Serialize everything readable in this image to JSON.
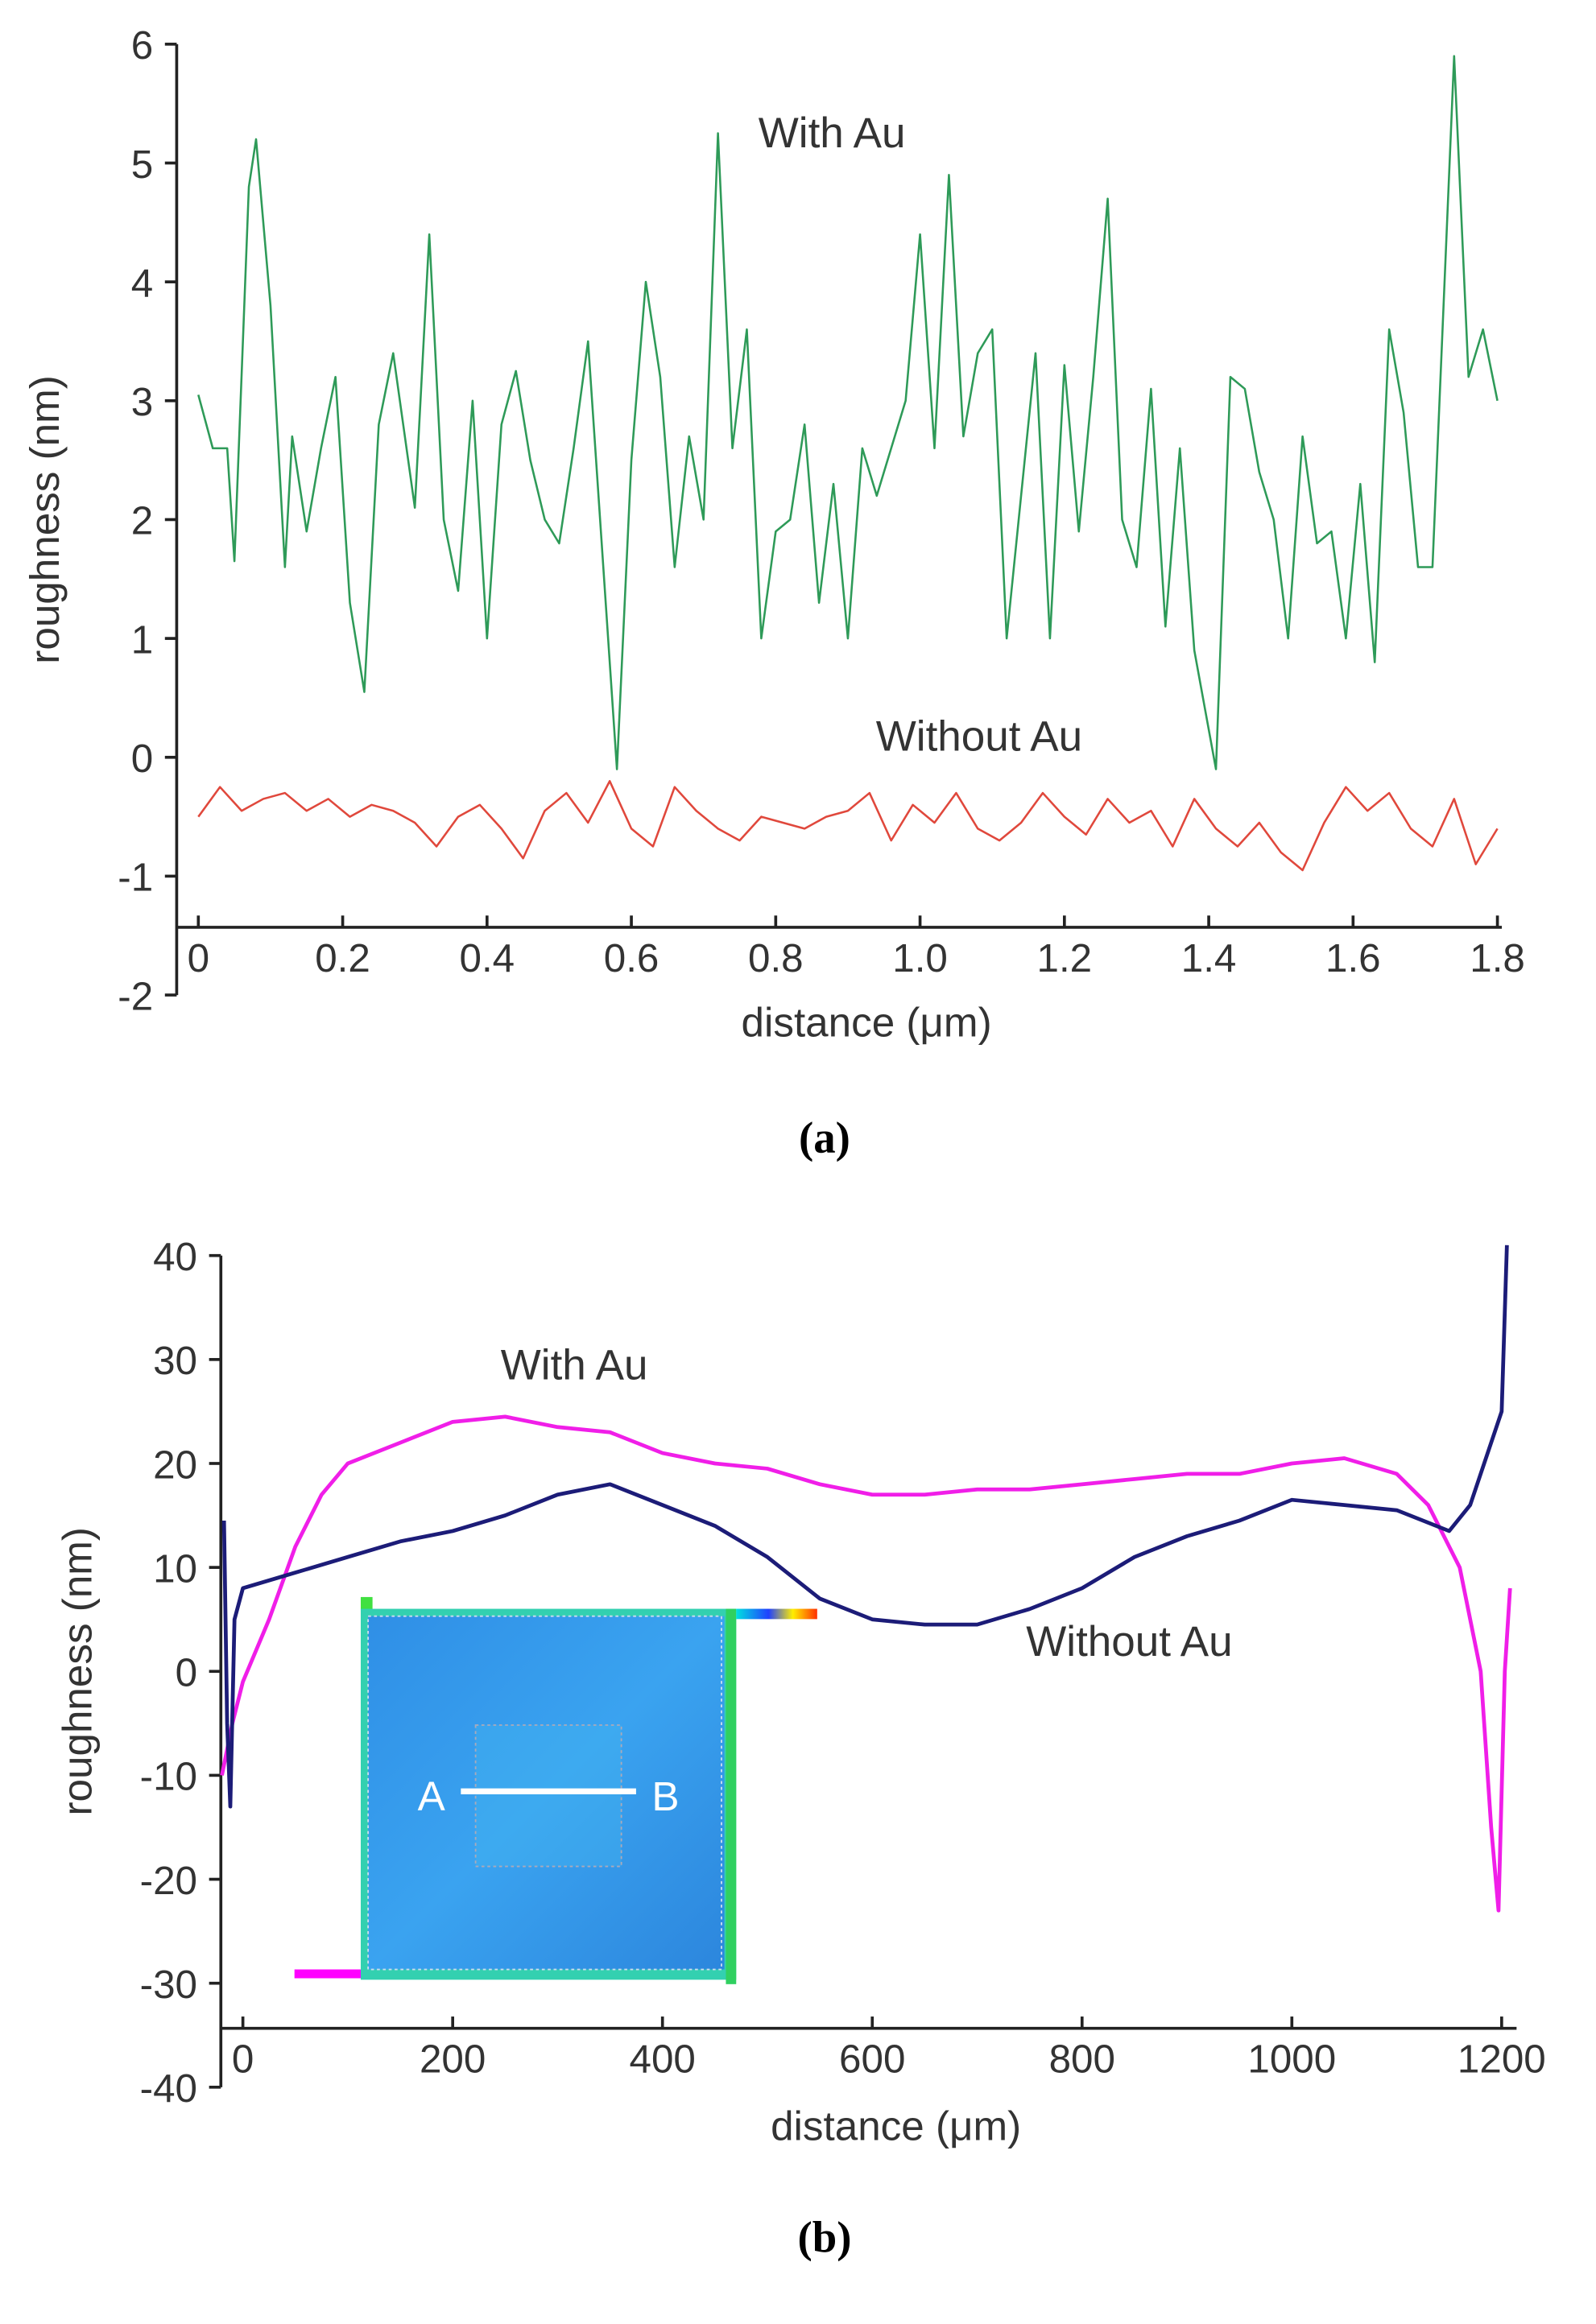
{
  "chart_data": [
    {
      "type": "line",
      "caption": "(a)",
      "xlabel": "distance (μm)",
      "ylabel": "roughness (nm)",
      "xlim": [
        -0.03,
        1.8
      ],
      "ylim": [
        -2,
        6
      ],
      "xticks": [
        0,
        0.2,
        0.4,
        0.6,
        0.8,
        {
          "value": 1,
          "label": "1.0"
        },
        1.2,
        1.4,
        1.6,
        1.8
      ],
      "yticks": [
        -2,
        -1,
        0,
        1,
        2,
        3,
        4,
        5,
        6
      ],
      "series": [
        {
          "name": "With Au",
          "color": "#2e9a58",
          "x": [
            0,
            0.02,
            0.04,
            0.05,
            0.07,
            0.08,
            0.1,
            0.12,
            0.13,
            0.15,
            0.17,
            0.19,
            0.21,
            0.23,
            0.25,
            0.27,
            0.3,
            0.32,
            0.34,
            0.36,
            0.38,
            0.4,
            0.42,
            0.44,
            0.46,
            0.48,
            0.5,
            0.52,
            0.54,
            0.56,
            0.58,
            0.6,
            0.62,
            0.64,
            0.66,
            0.68,
            0.7,
            0.72,
            0.74,
            0.76,
            0.78,
            0.8,
            0.82,
            0.84,
            0.86,
            0.88,
            0.9,
            0.92,
            0.94,
            0.96,
            0.98,
            1.0,
            1.02,
            1.04,
            1.06,
            1.08,
            1.1,
            1.12,
            1.14,
            1.16,
            1.18,
            1.2,
            1.22,
            1.24,
            1.26,
            1.28,
            1.3,
            1.32,
            1.34,
            1.36,
            1.38,
            1.41,
            1.43,
            1.45,
            1.47,
            1.49,
            1.51,
            1.53,
            1.55,
            1.57,
            1.59,
            1.61,
            1.63,
            1.65,
            1.67,
            1.69,
            1.71,
            1.74,
            1.76,
            1.78,
            1.8
          ],
          "values": [
            3.05,
            2.6,
            2.6,
            1.65,
            4.8,
            5.2,
            3.8,
            1.6,
            2.7,
            1.9,
            2.6,
            3.2,
            1.3,
            0.55,
            2.8,
            3.4,
            2.1,
            4.4,
            2.0,
            1.4,
            3.0,
            1.0,
            2.8,
            3.25,
            2.5,
            2.0,
            1.8,
            2.6,
            3.5,
            1.7,
            -0.1,
            2.5,
            4.0,
            3.2,
            1.6,
            2.7,
            2.0,
            5.25,
            2.6,
            3.6,
            1.0,
            1.9,
            2.0,
            2.8,
            1.3,
            2.3,
            1.0,
            2.6,
            2.2,
            2.6,
            3.0,
            4.4,
            2.6,
            4.9,
            2.7,
            3.4,
            3.6,
            1.0,
            2.2,
            3.4,
            1.0,
            3.3,
            1.9,
            3.2,
            4.7,
            2.0,
            1.6,
            3.1,
            1.1,
            2.6,
            0.9,
            -0.1,
            3.2,
            3.1,
            2.4,
            2.0,
            1.0,
            2.7,
            1.8,
            1.9,
            1.0,
            2.3,
            0.8,
            3.6,
            2.9,
            1.6,
            1.6,
            5.9,
            3.2,
            3.6,
            3.0
          ]
        },
        {
          "name": "Without Au",
          "color": "#e0483c",
          "x": [
            0,
            0.03,
            0.06,
            0.09,
            0.12,
            0.15,
            0.18,
            0.21,
            0.24,
            0.27,
            0.3,
            0.33,
            0.36,
            0.39,
            0.42,
            0.45,
            0.48,
            0.51,
            0.54,
            0.57,
            0.6,
            0.63,
            0.66,
            0.69,
            0.72,
            0.75,
            0.78,
            0.81,
            0.84,
            0.87,
            0.9,
            0.93,
            0.96,
            0.99,
            1.02,
            1.05,
            1.08,
            1.11,
            1.14,
            1.17,
            1.2,
            1.23,
            1.26,
            1.29,
            1.32,
            1.35,
            1.38,
            1.41,
            1.44,
            1.47,
            1.5,
            1.53,
            1.56,
            1.59,
            1.62,
            1.65,
            1.68,
            1.71,
            1.74,
            1.77,
            1.8
          ],
          "values": [
            -0.5,
            -0.25,
            -0.45,
            -0.35,
            -0.3,
            -0.45,
            -0.35,
            -0.5,
            -0.4,
            -0.45,
            -0.55,
            -0.75,
            -0.5,
            -0.4,
            -0.6,
            -0.85,
            -0.45,
            -0.3,
            -0.55,
            -0.2,
            -0.6,
            -0.75,
            -0.25,
            -0.45,
            -0.6,
            -0.7,
            -0.5,
            -0.55,
            -0.6,
            -0.5,
            -0.45,
            -0.3,
            -0.7,
            -0.4,
            -0.55,
            -0.3,
            -0.6,
            -0.7,
            -0.55,
            -0.3,
            -0.5,
            -0.65,
            -0.35,
            -0.55,
            -0.45,
            -0.75,
            -0.35,
            -0.6,
            -0.75,
            -0.55,
            -0.8,
            -0.95,
            -0.55,
            -0.25,
            -0.45,
            -0.3,
            -0.6,
            -0.75,
            -0.35,
            -0.9,
            -0.6
          ]
        }
      ]
    },
    {
      "type": "line",
      "caption": "(b)",
      "xlabel": "distance (μm)",
      "ylabel": "roughness (nm)",
      "xlim": [
        -21,
        1210
      ],
      "ylim": [
        -40,
        40
      ],
      "xticks": [
        0,
        200,
        400,
        600,
        800,
        1000,
        1200
      ],
      "yticks": [
        -40,
        -30,
        -20,
        -10,
        0,
        10,
        20,
        30,
        40
      ],
      "annotations": [
        "A",
        "B"
      ],
      "series": [
        {
          "name": "With Au",
          "color": "#f01ee8",
          "x": [
            -20,
            -10,
            0,
            25,
            50,
            75,
            100,
            150,
            200,
            250,
            300,
            350,
            400,
            450,
            500,
            550,
            600,
            650,
            700,
            750,
            800,
            850,
            900,
            950,
            1000,
            1050,
            1100,
            1130,
            1160,
            1180,
            1190,
            1197,
            1203,
            1208
          ],
          "values": [
            -10,
            -5,
            -1,
            5,
            12,
            17,
            20,
            22,
            24,
            24.5,
            23.5,
            23,
            21,
            20,
            19.5,
            18,
            17,
            17,
            17.5,
            17.5,
            18,
            18.5,
            19,
            19,
            20,
            20.5,
            19,
            16,
            10,
            0,
            -15,
            -23,
            0,
            8
          ]
        },
        {
          "name": "Without Au",
          "color": "#1c1c78",
          "x": [
            -18,
            -15,
            -12,
            -8,
            0,
            50,
            100,
            150,
            200,
            250,
            300,
            350,
            400,
            450,
            500,
            550,
            600,
            650,
            700,
            750,
            800,
            850,
            900,
            950,
            1000,
            1050,
            1100,
            1150,
            1170,
            1190,
            1200,
            1205
          ],
          "values": [
            14.5,
            -5,
            -13,
            5,
            8,
            9.5,
            11,
            12.5,
            13.5,
            15,
            17,
            18,
            16,
            14,
            11,
            7,
            5,
            4.5,
            4.5,
            6,
            8,
            11,
            13,
            14.5,
            16.5,
            16,
            15.5,
            13.5,
            16,
            22,
            25,
            41
          ]
        }
      ]
    }
  ]
}
